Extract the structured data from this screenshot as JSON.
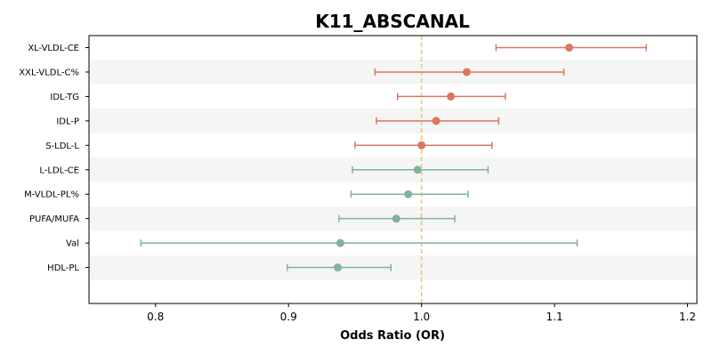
{
  "chart_data": {
    "type": "forest",
    "title": "K11_ABSCANAL",
    "xlabel": "Odds Ratio (OR)",
    "xlim": [
      0.75,
      1.207
    ],
    "xticks": [
      "0.8",
      "0.9",
      "1.0",
      "1.1",
      "1.2"
    ],
    "reference_line": 1.0,
    "colors": {
      "positive": "#d9785f",
      "negative": "#7fb39a",
      "reference": "#e8c57a",
      "band": "#f5f5f5"
    },
    "rows": [
      {
        "label": "XL-VLDL-CE",
        "or": 1.111,
        "lower": 1.056,
        "upper": 1.169
      },
      {
        "label": "XXL-VLDL-C%",
        "or": 1.034,
        "lower": 0.965,
        "upper": 1.107
      },
      {
        "label": "IDL-TG",
        "or": 1.022,
        "lower": 0.982,
        "upper": 1.063
      },
      {
        "label": "IDL-P",
        "or": 1.011,
        "lower": 0.966,
        "upper": 1.058
      },
      {
        "label": "S-LDL-L",
        "or": 1.0,
        "lower": 0.95,
        "upper": 1.053
      },
      {
        "label": "L-LDL-CE",
        "or": 0.997,
        "lower": 0.948,
        "upper": 1.05
      },
      {
        "label": "M-VLDL-PL%",
        "or": 0.99,
        "lower": 0.947,
        "upper": 1.035
      },
      {
        "label": "PUFA/MUFA",
        "or": 0.981,
        "lower": 0.938,
        "upper": 1.025
      },
      {
        "label": "Val",
        "or": 0.939,
        "lower": 0.789,
        "upper": 1.117
      },
      {
        "label": "HDL-PL",
        "or": 0.937,
        "lower": 0.899,
        "upper": 0.977
      }
    ]
  }
}
